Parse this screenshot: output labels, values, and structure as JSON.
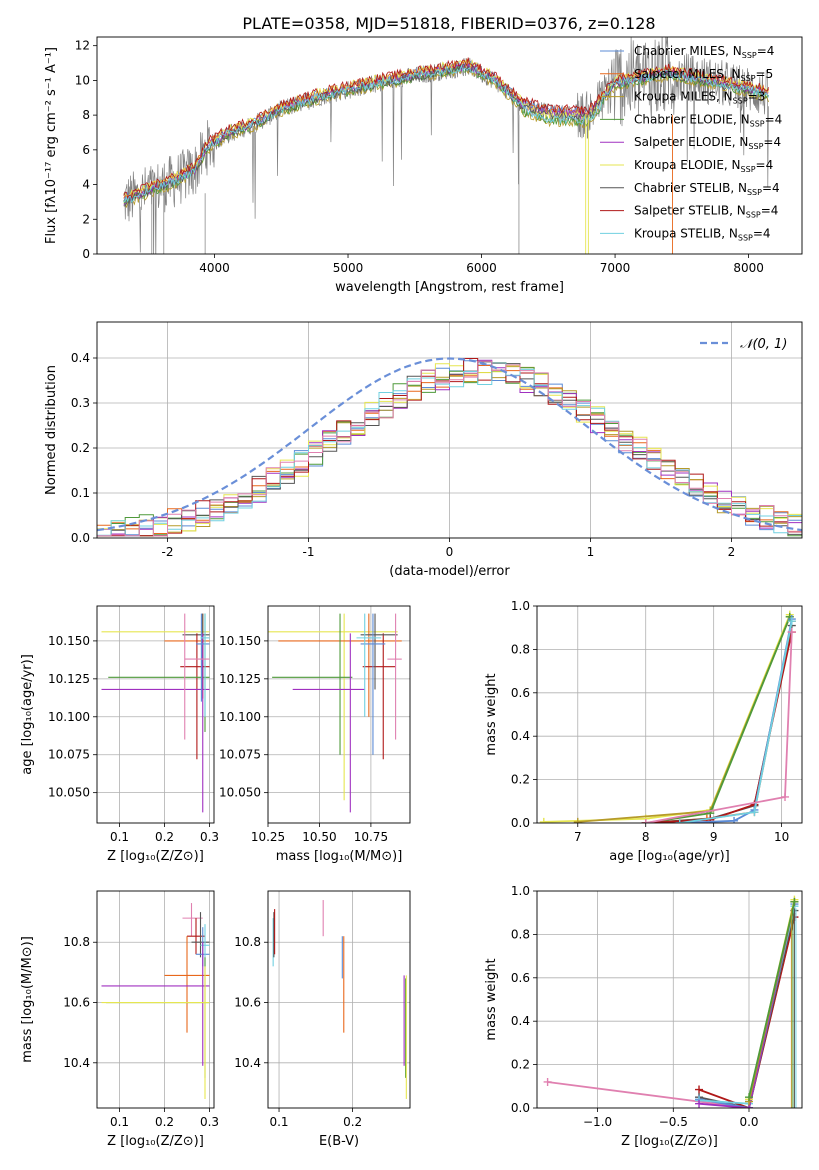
{
  "title": "PLATE=0358, MJD=51818, FIBERID=0376, z=0.128",
  "colors": {
    "Chabrier MILES": "#5b8bd6",
    "Salpeter MILES": "#e8681c",
    "Kroupa MILES": "#b59a2a",
    "Chabrier ELODIE": "#4f9a3a",
    "Salpeter ELODIE": "#a030c0",
    "Kroupa ELODIE": "#e6e650",
    "Chabrier STELIB": "#555555",
    "Salpeter STELIB": "#b01818",
    "Kroupa STELIB": "#70d0e0",
    "pink": "#e080b0",
    "data": "#808080",
    "normal": "#6a8fd8"
  },
  "chart_data": [
    {
      "id": "spectrum",
      "type": "line",
      "xlabel": "wavelength [Angstrom, rest frame]",
      "ylabel": "Flux [fλ10⁻¹⁷ erg cm⁻² s⁻¹ A⁻¹]",
      "xlim": [
        3120,
        8400
      ],
      "ylim": [
        0,
        12.5
      ],
      "xticks": [
        4000,
        5000,
        6000,
        7000,
        8000
      ],
      "yticks": [
        0,
        2,
        4,
        6,
        8,
        10,
        12
      ],
      "grid": false,
      "legend_position": "right",
      "series": [
        {
          "name": "Chabrier MILES, N",
          "sub": "SSP",
          "suffix": "=4"
        },
        {
          "name": "Salpeter MILES, N",
          "sub": "SSP",
          "suffix": "=5"
        },
        {
          "name": "Kroupa MILES, N",
          "sub": "SSP",
          "suffix": "=3"
        },
        {
          "name": "Chabrier ELODIE, N",
          "sub": "SSP",
          "suffix": "=4"
        },
        {
          "name": "Salpeter ELODIE, N",
          "sub": "SSP",
          "suffix": "=4"
        },
        {
          "name": "Kroupa ELODIE, N",
          "sub": "SSP",
          "suffix": "=4"
        },
        {
          "name": "Chabrier STELIB, N",
          "sub": "SSP",
          "suffix": "=4"
        },
        {
          "name": "Salpeter STELIB, N",
          "sub": "SSP",
          "suffix": "=4"
        },
        {
          "name": "Kroupa STELIB, N",
          "sub": "SSP",
          "suffix": "=4"
        }
      ],
      "continuum": [
        [
          3320,
          3.0
        ],
        [
          3500,
          3.6
        ],
        [
          3700,
          4.2
        ],
        [
          3850,
          4.8
        ],
        [
          3950,
          6.2
        ],
        [
          4100,
          6.9
        ],
        [
          4300,
          7.5
        ],
        [
          4500,
          8.3
        ],
        [
          4800,
          9.1
        ],
        [
          5200,
          9.8
        ],
        [
          5600,
          10.4
        ],
        [
          5900,
          10.8
        ],
        [
          6100,
          10.0
        ],
        [
          6300,
          8.6
        ],
        [
          6500,
          8.1
        ],
        [
          6800,
          8.0
        ],
        [
          7000,
          9.8
        ],
        [
          7400,
          10.4
        ],
        [
          7800,
          9.8
        ],
        [
          8150,
          9.2
        ]
      ]
    },
    {
      "id": "residuals",
      "type": "line",
      "xlabel": "(data-model)/error",
      "ylabel": "Normed distribution",
      "xlim": [
        -2.5,
        2.5
      ],
      "ylim": [
        0,
        0.48
      ],
      "xticks": [
        -2,
        -1,
        0,
        1,
        2
      ],
      "yticks": [
        0.0,
        0.1,
        0.2,
        0.3,
        0.4
      ],
      "grid": true,
      "legend_position": "top-right",
      "legend": "𝒩(0, 1)"
    },
    {
      "id": "age-vs-Z",
      "type": "scatter",
      "xlabel": "Z [log₁₀(Z/Z⊙)]",
      "ylabel": "age  [log₁₀(age/yr)]",
      "xlim": [
        0.05,
        0.31
      ],
      "ylim": [
        10.03,
        10.173
      ],
      "xticks": [
        0.1,
        0.2,
        0.3
      ],
      "yticks": [
        10.05,
        10.075,
        10.1,
        10.125,
        10.15
      ],
      "grid": true,
      "points": [
        {
          "s": "Kroupa ELODIE",
          "x": 0.28,
          "y": 10.156,
          "xl": 0.06,
          "xh": 0.3,
          "yl": 10.156,
          "yh": 10.156
        },
        {
          "s": "Salpeter MILES",
          "x": 0.285,
          "y": 10.15,
          "xl": 0.2,
          "xh": 0.3,
          "yl": 10.112,
          "yh": 10.168
        },
        {
          "s": "Chabrier STELIB",
          "x": 0.285,
          "y": 10.154,
          "xl": 0.24,
          "xh": 0.3,
          "yl": 10.118,
          "yh": 10.168
        },
        {
          "s": "Salpeter STELIB",
          "x": 0.272,
          "y": 10.133,
          "xl": 0.235,
          "xh": 0.3,
          "yl": 10.072,
          "yh": 10.155
        },
        {
          "s": "Chabrier ELODIE",
          "x": 0.29,
          "y": 10.126,
          "xl": 0.075,
          "xh": 0.3,
          "yl": 10.09,
          "yh": 10.168
        },
        {
          "s": "Salpeter ELODIE",
          "x": 0.285,
          "y": 10.118,
          "xl": 0.06,
          "xh": 0.3,
          "yl": 10.037,
          "yh": 10.155
        },
        {
          "s": "Chabrier MILES",
          "x": 0.282,
          "y": 10.148,
          "xl": 0.27,
          "xh": 0.3,
          "yl": 10.11,
          "yh": 10.168
        },
        {
          "s": "Kroupa STELIB",
          "x": 0.29,
          "y": 10.152,
          "xl": 0.28,
          "xh": 0.3,
          "yl": 10.1,
          "yh": 10.168
        },
        {
          "s": "pink",
          "x": 0.245,
          "y": 10.138,
          "xl": 0.245,
          "xh": 0.3,
          "yl": 10.085,
          "yh": 10.168
        }
      ]
    },
    {
      "id": "age-vs-mass",
      "type": "scatter",
      "xlabel": "mass [log₁₀(M/M⊙)]",
      "ylabel": "",
      "xlim": [
        10.25,
        10.94
      ],
      "ylim": [
        10.03,
        10.173
      ],
      "xticks": [
        10.25,
        10.5,
        10.75
      ],
      "xticklabels": [
        "10.25",
        "10.50",
        "10.75"
      ],
      "yticks": [
        10.05,
        10.075,
        10.1,
        10.125,
        10.15
      ],
      "grid": true,
      "points": [
        {
          "s": "Kroupa ELODIE",
          "x": 10.62,
          "y": 10.156,
          "xl": 10.25,
          "xh": 10.88,
          "yl": 10.045,
          "yh": 10.168
        },
        {
          "s": "Salpeter MILES",
          "x": 10.74,
          "y": 10.15,
          "xl": 10.3,
          "xh": 10.9,
          "yl": 10.1,
          "yh": 10.168
        },
        {
          "s": "Chabrier ELODIE",
          "x": 10.6,
          "y": 10.126,
          "xl": 10.27,
          "xh": 10.66,
          "yl": 10.075,
          "yh": 10.168
        },
        {
          "s": "Salpeter ELODIE",
          "x": 10.65,
          "y": 10.118,
          "xl": 10.37,
          "xh": 10.72,
          "yl": 10.037,
          "yh": 10.155
        },
        {
          "s": "Salpeter STELIB",
          "x": 10.81,
          "y": 10.133,
          "xl": 10.71,
          "xh": 10.87,
          "yl": 10.072,
          "yh": 10.155
        },
        {
          "s": "Chabrier STELIB",
          "x": 10.77,
          "y": 10.154,
          "xl": 10.7,
          "xh": 10.88,
          "yl": 10.118,
          "yh": 10.168
        },
        {
          "s": "Chabrier MILES",
          "x": 10.76,
          "y": 10.148,
          "xl": 10.7,
          "xh": 10.82,
          "yl": 10.075,
          "yh": 10.168
        },
        {
          "s": "Kroupa STELIB",
          "x": 10.72,
          "y": 10.152,
          "xl": 10.68,
          "xh": 10.8,
          "yl": 10.1,
          "yh": 10.168
        },
        {
          "s": "pink",
          "x": 10.87,
          "y": 10.138,
          "xl": 10.83,
          "xh": 10.9,
          "yl": 10.085,
          "yh": 10.168
        }
      ]
    },
    {
      "id": "weight-vs-age",
      "type": "line",
      "xlabel": "age  [log₁₀(age/yr)]",
      "ylabel": "mass weight",
      "xlim": [
        6.4,
        10.3
      ],
      "ylim": [
        0.0,
        1.0
      ],
      "xticks": [
        7,
        8,
        9,
        10
      ],
      "yticks": [
        0.0,
        0.2,
        0.4,
        0.6,
        0.8,
        1.0
      ],
      "grid": true,
      "series": [
        {
          "s": "Kroupa ELODIE",
          "x": [
            6.5,
            8.0,
            8.95,
            10.12
          ],
          "y": [
            0.005,
            0.02,
            0.06,
            0.96
          ]
        },
        {
          "s": "Kroupa MILES",
          "x": [
            7.0,
            8.95,
            10.12
          ],
          "y": [
            0.005,
            0.055,
            0.95
          ]
        },
        {
          "s": "Chabrier ELODIE",
          "x": [
            8.0,
            8.95,
            10.12
          ],
          "y": [
            0.0,
            0.045,
            0.95
          ]
        },
        {
          "s": "Salpeter MILES",
          "x": [
            8.0,
            8.9,
            9.6,
            10.15
          ],
          "y": [
            0.0,
            0.02,
            0.05,
            0.93
          ]
        },
        {
          "s": "Chabrier STELIB",
          "x": [
            8.0,
            8.95,
            9.6,
            10.15
          ],
          "y": [
            0.0,
            0.02,
            0.08,
            0.91
          ]
        },
        {
          "s": "Salpeter STELIB",
          "x": [
            8.0,
            8.95,
            9.6,
            10.15
          ],
          "y": [
            0.0,
            0.015,
            0.085,
            0.88
          ]
        },
        {
          "s": "Chabrier MILES",
          "x": [
            8.5,
            9.3,
            9.6,
            10.15
          ],
          "y": [
            0.0,
            0.01,
            0.06,
            0.94
          ]
        },
        {
          "s": "Kroupa STELIB",
          "x": [
            8.5,
            9.6,
            10.15
          ],
          "y": [
            0.0,
            0.05,
            0.93
          ]
        },
        {
          "s": "pink",
          "x": [
            8.0,
            10.05,
            10.15
          ],
          "y": [
            0.0,
            0.12,
            0.88
          ]
        }
      ]
    },
    {
      "id": "mass-vs-Z",
      "type": "scatter",
      "xlabel": "Z [log₁₀(Z/Z⊙)]",
      "ylabel": "mass [log₁₀(M/M⊙)]",
      "xlim": [
        0.05,
        0.31
      ],
      "ylim": [
        10.25,
        10.97
      ],
      "xticks": [
        0.1,
        0.2,
        0.3
      ],
      "yticks": [
        10.4,
        10.6,
        10.8
      ],
      "grid": true,
      "points": [
        {
          "s": "pink",
          "x": 0.26,
          "y": 10.88,
          "xl": 0.24,
          "xh": 0.285,
          "yl": 10.82,
          "yh": 10.93
        },
        {
          "s": "Salpeter STELIB",
          "x": 0.27,
          "y": 10.82,
          "xl": 0.25,
          "xh": 0.29,
          "yl": 10.76,
          "yh": 10.88
        },
        {
          "s": "Chabrier STELIB",
          "x": 0.28,
          "y": 10.8,
          "xl": 0.26,
          "xh": 0.3,
          "yl": 10.75,
          "yh": 10.9
        },
        {
          "s": "Chabrier MILES",
          "x": 0.285,
          "y": 10.76,
          "xl": 0.27,
          "xh": 0.3,
          "yl": 10.72,
          "yh": 10.85
        },
        {
          "s": "Kroupa STELIB",
          "x": 0.29,
          "y": 10.79,
          "xl": 0.28,
          "xh": 0.3,
          "yl": 10.72,
          "yh": 10.86
        },
        {
          "s": "Salpeter MILES",
          "x": 0.25,
          "y": 10.69,
          "xl": 0.2,
          "xh": 0.3,
          "yl": 10.5,
          "yh": 10.82
        },
        {
          "s": "Salpeter ELODIE",
          "x": 0.285,
          "y": 10.655,
          "xl": 0.06,
          "xh": 0.3,
          "yl": 10.39,
          "yh": 10.8
        },
        {
          "s": "Chabrier ELODIE",
          "x": 0.29,
          "y": 10.6,
          "xl": 0.07,
          "xh": 0.3,
          "yl": 10.35,
          "yh": 10.75
        },
        {
          "s": "Kroupa ELODIE",
          "x": 0.29,
          "y": 10.6,
          "xl": 0.06,
          "xh": 0.3,
          "yl": 10.28,
          "yh": 10.72
        }
      ]
    },
    {
      "id": "mass-vs-EBV",
      "type": "scatter",
      "xlabel": "E(B-V)",
      "ylabel": "",
      "xlim": [
        0.085,
        0.278
      ],
      "ylim": [
        10.25,
        10.97
      ],
      "xticks": [
        0.1,
        0.2
      ],
      "yticks": [
        10.4,
        10.6,
        10.8
      ],
      "grid": true,
      "points": [
        {
          "s": "Kroupa STELIB",
          "x": 0.092,
          "y": 10.8,
          "yl": 10.72,
          "yh": 10.88
        },
        {
          "s": "Chabrier STELIB",
          "x": 0.093,
          "y": 10.82,
          "yl": 10.75,
          "yh": 10.9
        },
        {
          "s": "Salpeter STELIB",
          "x": 0.094,
          "y": 10.84,
          "yl": 10.76,
          "yh": 10.91
        },
        {
          "s": "pink",
          "x": 0.16,
          "y": 10.88,
          "yl": 10.82,
          "yh": 10.94
        },
        {
          "s": "Chabrier MILES",
          "x": 0.186,
          "y": 10.74,
          "yl": 10.68,
          "yh": 10.82
        },
        {
          "s": "Salpeter MILES",
          "x": 0.188,
          "y": 10.68,
          "yl": 10.5,
          "yh": 10.82
        },
        {
          "s": "Salpeter ELODIE",
          "x": 0.27,
          "y": 10.6,
          "yl": 10.39,
          "yh": 10.69
        },
        {
          "s": "Chabrier ELODIE",
          "x": 0.272,
          "y": 10.58,
          "yl": 10.35,
          "yh": 10.68
        },
        {
          "s": "Kroupa ELODIE",
          "x": 0.273,
          "y": 10.5,
          "yl": 10.28,
          "yh": 10.69
        }
      ]
    },
    {
      "id": "weight-vs-Z",
      "type": "line",
      "xlabel": "Z [log₁₀(Z/Z⊙)]",
      "ylabel": "mass weight",
      "xlim": [
        -1.4,
        0.35
      ],
      "ylim": [
        0.0,
        1.0
      ],
      "xticks": [
        -1.0,
        -0.5,
        0.0
      ],
      "xticklabels": [
        "−1.0",
        "−0.5",
        "0.0"
      ],
      "yticks": [
        0.0,
        0.2,
        0.4,
        0.6,
        0.8,
        1.0
      ],
      "grid": true,
      "series": [
        {
          "s": "pink",
          "x": [
            -1.33,
            0.0,
            0.3
          ],
          "y": [
            0.12,
            0.0,
            0.88
          ]
        },
        {
          "s": "Salpeter STELIB",
          "x": [
            -0.33,
            0.0,
            0.3
          ],
          "y": [
            0.085,
            0.0,
            0.88
          ]
        },
        {
          "s": "Chabrier STELIB",
          "x": [
            -0.33,
            0.0,
            0.3
          ],
          "y": [
            0.05,
            0.0,
            0.91
          ]
        },
        {
          "s": "Chabrier MILES",
          "x": [
            -0.33,
            0.0,
            0.3
          ],
          "y": [
            0.04,
            0.0,
            0.94
          ]
        },
        {
          "s": "Kroupa STELIB",
          "x": [
            -0.33,
            0.0,
            0.3
          ],
          "y": [
            0.035,
            0.02,
            0.93
          ]
        },
        {
          "s": "Salpeter ELODIE",
          "x": [
            -0.33,
            0.0,
            0.3
          ],
          "y": [
            0.02,
            0.0,
            0.95
          ]
        },
        {
          "s": "Kroupa ELODIE",
          "x": [
            0.0,
            0.3
          ],
          "y": [
            0.04,
            0.96
          ]
        },
        {
          "s": "Kroupa MILES",
          "x": [
            0.0,
            0.3
          ],
          "y": [
            0.03,
            0.95
          ]
        },
        {
          "s": "Chabrier ELODIE",
          "x": [
            0.0,
            0.3
          ],
          "y": [
            0.05,
            0.95
          ]
        }
      ]
    }
  ]
}
